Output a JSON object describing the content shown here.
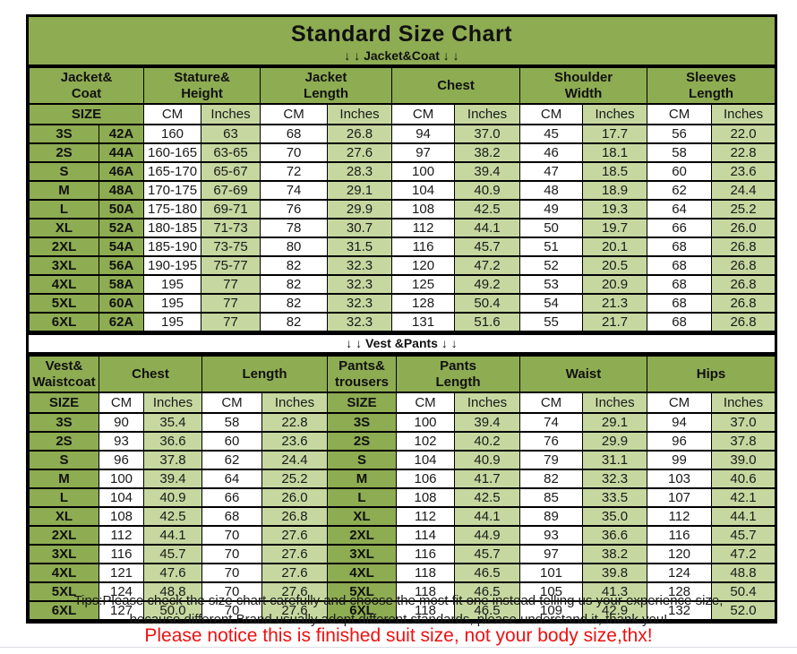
{
  "title": "Standard Size Chart",
  "sections": {
    "jacket_label": "↓ ↓  Jacket&Coat ↓ ↓",
    "vest_label": "↓ ↓  Vest &Pants ↓ ↓"
  },
  "colors": {
    "header_green": "#8eac52",
    "light_green": "#c6d8a0",
    "notice_red": "#ee1111",
    "grid_black": "#000000"
  },
  "chart_data": [
    {
      "type": "table",
      "title": "Jacket&Coat",
      "group_headers": [
        "Jacket&\nCoat",
        "Stature&\nHeight",
        "Jacket\nLength",
        "Chest",
        "Shoulder\nWidth",
        "Sleeves\nLength"
      ],
      "size_header": "SIZE",
      "unit_headers": [
        "CM",
        "Inches"
      ],
      "columns": [
        "Size",
        "Size Code",
        "Stature&Height CM",
        "Stature&Height Inches",
        "Jacket Length CM",
        "Jacket Length Inches",
        "Chest CM",
        "Chest Inches",
        "Shoulder Width CM",
        "Shoulder Width Inches",
        "Sleeves Length CM",
        "Sleeves Length Inches"
      ],
      "rows": [
        [
          "3S",
          "42A",
          "160",
          "63",
          "68",
          "26.8",
          "94",
          "37.0",
          "45",
          "17.7",
          "56",
          "22.0"
        ],
        [
          "2S",
          "44A",
          "160-165",
          "63-65",
          "70",
          "27.6",
          "97",
          "38.2",
          "46",
          "18.1",
          "58",
          "22.8"
        ],
        [
          "S",
          "46A",
          "165-170",
          "65-67",
          "72",
          "28.3",
          "100",
          "39.4",
          "47",
          "18.5",
          "60",
          "23.6"
        ],
        [
          "M",
          "48A",
          "170-175",
          "67-69",
          "74",
          "29.1",
          "104",
          "40.9",
          "48",
          "18.9",
          "62",
          "24.4"
        ],
        [
          "L",
          "50A",
          "175-180",
          "69-71",
          "76",
          "29.9",
          "108",
          "42.5",
          "49",
          "19.3",
          "64",
          "25.2"
        ],
        [
          "XL",
          "52A",
          "180-185",
          "71-73",
          "78",
          "30.7",
          "112",
          "44.1",
          "50",
          "19.7",
          "66",
          "26.0"
        ],
        [
          "2XL",
          "54A",
          "185-190",
          "73-75",
          "80",
          "31.5",
          "116",
          "45.7",
          "51",
          "20.1",
          "68",
          "26.8"
        ],
        [
          "3XL",
          "56A",
          "190-195",
          "75-77",
          "82",
          "32.3",
          "120",
          "47.2",
          "52",
          "20.5",
          "68",
          "26.8"
        ],
        [
          "4XL",
          "58A",
          "195",
          "77",
          "82",
          "32.3",
          "125",
          "49.2",
          "53",
          "20.9",
          "68",
          "26.8"
        ],
        [
          "5XL",
          "60A",
          "195",
          "77",
          "82",
          "32.3",
          "128",
          "50.4",
          "54",
          "21.3",
          "68",
          "26.8"
        ],
        [
          "6XL",
          "62A",
          "195",
          "77",
          "82",
          "32.3",
          "131",
          "51.6",
          "55",
          "21.7",
          "68",
          "26.8"
        ]
      ]
    },
    {
      "type": "table",
      "title": "Vest &Pants",
      "group_headers": [
        "Vest&\nWaistcoat",
        "Chest",
        "Length",
        "Pants&\ntrousers",
        "Pants\nLength",
        "Waist",
        "Hips"
      ],
      "size_header": "SIZE",
      "unit_headers": [
        "CM",
        "Inches"
      ],
      "columns": [
        "Vest&Waistcoat Size",
        "Chest CM",
        "Chest Inches",
        "Length CM",
        "Length Inches",
        "Pants&trousers Size",
        "Pants Length CM",
        "Pants Length Inches",
        "Waist CM",
        "Waist Inches",
        "Hips CM",
        "Hips Inches"
      ],
      "rows": [
        [
          "3S",
          "90",
          "35.4",
          "58",
          "22.8",
          "3S",
          "100",
          "39.4",
          "74",
          "29.1",
          "94",
          "37.0"
        ],
        [
          "2S",
          "93",
          "36.6",
          "60",
          "23.6",
          "2S",
          "102",
          "40.2",
          "76",
          "29.9",
          "96",
          "37.8"
        ],
        [
          "S",
          "96",
          "37.8",
          "62",
          "24.4",
          "S",
          "104",
          "40.9",
          "79",
          "31.1",
          "99",
          "39.0"
        ],
        [
          "M",
          "100",
          "39.4",
          "64",
          "25.2",
          "M",
          "106",
          "41.7",
          "82",
          "32.3",
          "103",
          "40.6"
        ],
        [
          "L",
          "104",
          "40.9",
          "66",
          "26.0",
          "L",
          "108",
          "42.5",
          "85",
          "33.5",
          "107",
          "42.1"
        ],
        [
          "XL",
          "108",
          "42.5",
          "68",
          "26.8",
          "XL",
          "112",
          "44.1",
          "89",
          "35.0",
          "112",
          "44.1"
        ],
        [
          "2XL",
          "112",
          "44.1",
          "70",
          "27.6",
          "2XL",
          "114",
          "44.9",
          "93",
          "36.6",
          "116",
          "45.7"
        ],
        [
          "3XL",
          "116",
          "45.7",
          "70",
          "27.6",
          "3XL",
          "116",
          "45.7",
          "97",
          "38.2",
          "120",
          "47.2"
        ],
        [
          "4XL",
          "121",
          "47.6",
          "70",
          "27.6",
          "4XL",
          "118",
          "46.5",
          "101",
          "39.8",
          "124",
          "48.8"
        ],
        [
          "5XL",
          "124",
          "48.8",
          "70",
          "27.6",
          "5XL",
          "118",
          "46.5",
          "105",
          "41.3",
          "128",
          "50.4"
        ],
        [
          "6XL",
          "127",
          "50.0",
          "70",
          "27.6",
          "6XL",
          "118",
          "46.5",
          "109",
          "42.9",
          "132",
          "52.0"
        ]
      ]
    }
  ],
  "footer": {
    "tips_line1": "Tips:Please check the size chart carefully and choose the most fit one instead telling us your experience size,",
    "tips_line2": "because different Brand usually adopt different standards, please understand it, thank you!",
    "notice": "Please notice this is finished suit size, not your body size,thx!"
  }
}
